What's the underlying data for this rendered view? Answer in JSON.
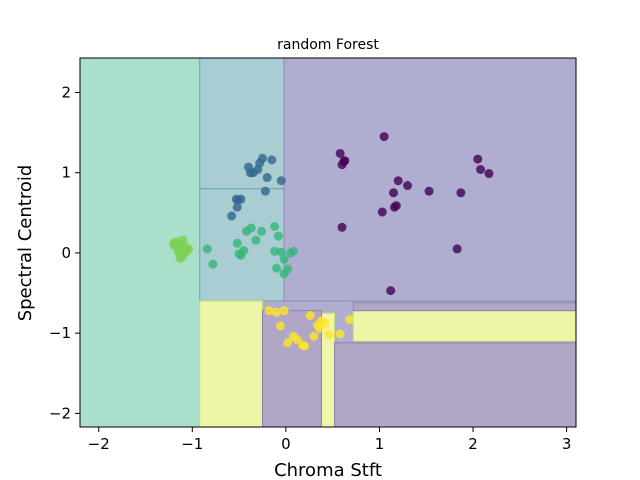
{
  "chart_data": {
    "type": "scatter",
    "title": "random Forest",
    "xlabel": "Chroma Stft",
    "ylabel": "Spectral Centroid",
    "xlim": [
      -2.2,
      3.1
    ],
    "ylim": [
      -2.17,
      2.43
    ],
    "xticks": [
      -2,
      -1,
      0,
      1,
      2,
      3
    ],
    "yticks": [
      -2,
      -1,
      0,
      1,
      2
    ],
    "grid": false,
    "colors": {
      "class0": "#440154",
      "class1": "#31688e",
      "class2": "#35b779",
      "class3": "#7ad151",
      "class4": "#fde725",
      "region_purple": "#b0aed0",
      "region_teal": "#a9cdd3",
      "region_green": "#aadfcb",
      "region_yellow": "#eef5a6",
      "region_dark": "#b2a6c6"
    },
    "decision_regions": [
      {
        "class": "green",
        "x": [
          -2.2,
          -0.92
        ],
        "y": [
          -2.17,
          2.43
        ]
      },
      {
        "class": "teal",
        "x": [
          -0.92,
          -0.02
        ],
        "y": [
          0.8,
          2.43
        ]
      },
      {
        "class": "teal",
        "x": [
          -0.92,
          0.6
        ],
        "y": [
          -0.6,
          0.8
        ]
      },
      {
        "class": "purple",
        "x": [
          -0.02,
          3.1
        ],
        "y": [
          -0.6,
          2.43
        ]
      },
      {
        "class": "yellow",
        "x": [
          -0.92,
          -0.25
        ],
        "y": [
          -2.17,
          -0.6
        ]
      },
      {
        "class": "yellow",
        "x": [
          0.72,
          3.1
        ],
        "y": [
          -1.1,
          -0.72
        ]
      },
      {
        "class": "yellow",
        "x": [
          0.38,
          0.52
        ],
        "y": [
          -2.17,
          -0.75
        ]
      },
      {
        "class": "dark",
        "x": [
          -0.25,
          0.38
        ],
        "y": [
          -2.17,
          -0.72
        ]
      },
      {
        "class": "dark",
        "x": [
          0.52,
          3.1
        ],
        "y": [
          -2.17,
          -1.12
        ]
      },
      {
        "class": "dark",
        "x": [
          0.72,
          3.1
        ],
        "y": [
          -0.72,
          -0.62
        ]
      }
    ],
    "series": [
      {
        "class": 0,
        "x": [
          0.58,
          0.6,
          0.62,
          1.05,
          0.63,
          1.15,
          1.2,
          1.3,
          1.53,
          2.05,
          2.08,
          2.17,
          1.87,
          1.18,
          1.16,
          1.03,
          0.6,
          1.83,
          1.12
        ],
        "y": [
          1.24,
          1.1,
          1.14,
          1.45,
          1.15,
          0.75,
          0.9,
          0.84,
          0.77,
          1.17,
          1.04,
          0.99,
          0.75,
          0.59,
          0.57,
          0.51,
          0.32,
          0.05,
          -0.47
        ]
      },
      {
        "class": 1,
        "x": [
          -0.4,
          -0.38,
          -0.3,
          -0.28,
          -0.25,
          -0.2,
          -0.15,
          -0.05,
          -0.22,
          -0.53,
          -0.51,
          -0.48,
          -0.52,
          -0.58,
          -0.35
        ],
        "y": [
          1.07,
          1.0,
          1.04,
          1.12,
          1.18,
          0.94,
          1.16,
          0.9,
          0.77,
          0.67,
          0.66,
          0.67,
          0.57,
          0.46,
          1.0
        ]
      },
      {
        "class": 2,
        "x": [
          -0.84,
          -0.78,
          -0.52,
          -0.5,
          -0.45,
          -0.42,
          -0.37,
          -0.32,
          -0.26,
          -0.12,
          -0.08,
          -0.05,
          -0.02,
          0.02,
          0.05,
          0.08,
          -0.02,
          -0.12,
          -0.1,
          -0.48
        ],
        "y": [
          0.05,
          -0.14,
          0.12,
          -0.01,
          0.03,
          0.27,
          0.31,
          0.16,
          0.27,
          0.33,
          0.21,
          0.01,
          -0.08,
          -0.2,
          0.0,
          0.02,
          -0.26,
          0.02,
          -0.19,
          -0.03
        ]
      },
      {
        "class": 3,
        "x": [
          -1.2,
          -1.17,
          -1.14,
          -1.12,
          -1.1,
          -1.08,
          -1.06,
          -1.04,
          -1.15,
          -1.13,
          -1.1,
          -1.19
        ],
        "y": [
          0.12,
          0.14,
          0.07,
          0.11,
          0.16,
          0.08,
          0.02,
          0.05,
          0.01,
          -0.07,
          -0.04,
          0.09
        ]
      },
      {
        "class": 4,
        "x": [
          -0.18,
          -0.1,
          -0.02,
          -0.06,
          0.02,
          0.08,
          0.12,
          0.18,
          0.26,
          0.3,
          0.34,
          0.38,
          0.42,
          0.36,
          0.46,
          0.58,
          0.68,
          0.2
        ],
        "y": [
          -0.72,
          -0.74,
          -0.72,
          -0.91,
          -1.12,
          -1.04,
          -1.08,
          -1.15,
          -0.78,
          -1.04,
          -0.9,
          -0.85,
          -0.88,
          -0.94,
          -1.02,
          -1.01,
          -0.83,
          -1.16
        ]
      }
    ]
  }
}
